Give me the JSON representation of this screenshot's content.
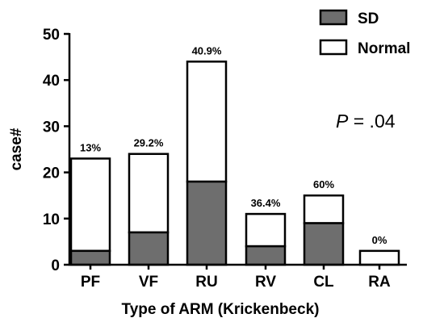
{
  "colors": {
    "sd": "#6e6e6e",
    "normal": "#ffffff",
    "stroke": "#000000"
  },
  "legend": {
    "sd_label": "SD",
    "normal_label": "Normal"
  },
  "annotation": {
    "p_symbol": "P",
    "p_rest": " = .04"
  },
  "chart_data": {
    "type": "bar",
    "stacked": true,
    "categories": [
      "PF",
      "VF",
      "RU",
      "RV",
      "CL",
      "RA"
    ],
    "series": [
      {
        "name": "SD",
        "values": [
          3,
          7,
          18,
          4,
          9,
          0
        ]
      },
      {
        "name": "Normal",
        "values": [
          20,
          17,
          26,
          7,
          6,
          3
        ]
      }
    ],
    "totals": [
      23,
      24,
      44,
      11,
      15,
      3
    ],
    "percent_labels": [
      "13%",
      "29.2%",
      "40.9%",
      "36.4%",
      "60%",
      "0%"
    ],
    "xlabel": "Type of ARM (Krickenbeck)",
    "ylabel": "case#",
    "ylim": [
      0,
      50
    ],
    "yticks": [
      0,
      10,
      20,
      30,
      40,
      50
    ],
    "legend_position": "top-right",
    "grid": false
  }
}
